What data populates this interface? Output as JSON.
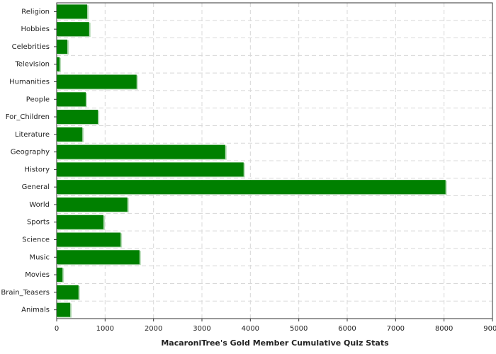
{
  "chart_data": {
    "type": "bar",
    "orientation": "horizontal",
    "x_label": "MacaroniTree's Gold Member Cumulative Quiz Stats",
    "categories": [
      "Religion",
      "Hobbies",
      "Celebrities",
      "Television",
      "Humanities",
      "People",
      "For_Children",
      "Literature",
      "Geography",
      "History",
      "General",
      "World",
      "Sports",
      "Science",
      "Music",
      "Movies",
      "Brain_Teasers",
      "Animals"
    ],
    "values": [
      630,
      670,
      220,
      60,
      1650,
      600,
      850,
      530,
      3480,
      3860,
      8030,
      1460,
      965,
      1320,
      1710,
      120,
      450,
      280
    ],
    "color": "#008000",
    "xlim": [
      0,
      9000
    ],
    "xticks": [
      0,
      1000,
      2000,
      3000,
      4000,
      5000,
      6000,
      7000,
      8000,
      9000
    ],
    "grid": true
  }
}
